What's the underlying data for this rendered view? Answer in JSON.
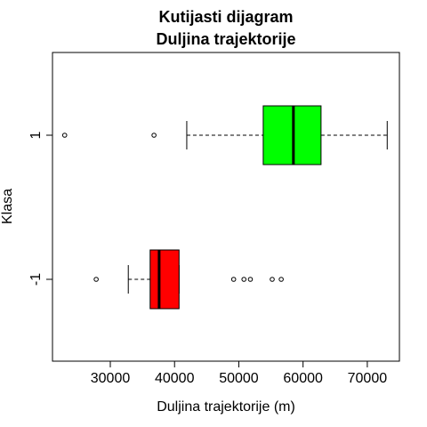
{
  "chart_data": {
    "type": "boxplot",
    "orientation": "horizontal",
    "title": "Kutijasti dijagram\nDuljina trajektorije",
    "title_lines": [
      "Kutijasti dijagram",
      "Duljina trajektorije"
    ],
    "xlabel": "Duljina trajektorije (m)",
    "ylabel": "Klasa",
    "xlim": [
      21000,
      75000
    ],
    "x_ticks": [
      30000,
      40000,
      50000,
      60000,
      70000
    ],
    "x_tick_labels": [
      "30000",
      "40000",
      "50000",
      "60000",
      "70000"
    ],
    "grid": false,
    "categories": [
      "-1",
      "1"
    ],
    "series": [
      {
        "name": "-1",
        "color": "#ff0000",
        "whisker_low": 32800,
        "q1": 36200,
        "median": 37600,
        "q3": 40700,
        "whisker_high": 40700,
        "outliers": [
          27800,
          49200,
          50800,
          51800,
          55200,
          56600
        ]
      },
      {
        "name": "1",
        "color": "#00ff00",
        "whisker_low": 41900,
        "q1": 53800,
        "median": 58500,
        "q3": 62800,
        "whisker_high": 73100,
        "outliers": [
          22900,
          36800
        ]
      }
    ]
  }
}
